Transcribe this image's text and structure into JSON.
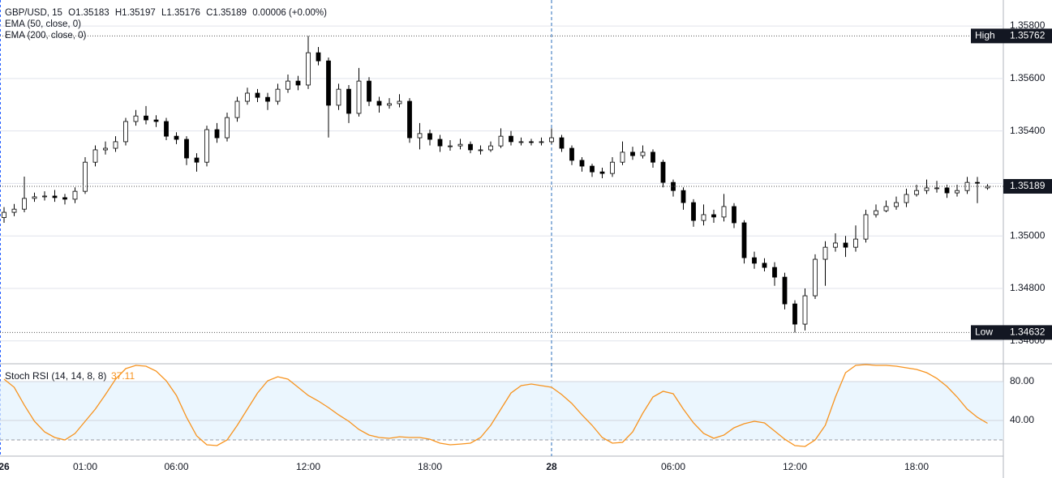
{
  "chart_data": [
    {
      "type": "candlestick",
      "header": {
        "title": "GBP/USD, 15",
        "open": "O1.35183",
        "high": "H1.35197",
        "low": "L1.35176",
        "close": "C1.35189",
        "change": "0.00006 (+0.00%)"
      },
      "indicators": [
        "EMA (50, close, 0)",
        "EMA (200, close, 0)"
      ],
      "xlim": [
        -0.4,
        98.56
      ],
      "xticks": [
        {
          "value": 0,
          "label": "26"
        },
        {
          "value": 8,
          "label": "01:00"
        },
        {
          "value": 17,
          "label": "06:00"
        },
        {
          "value": 30,
          "label": "12:00"
        },
        {
          "value": 42,
          "label": "18:00"
        },
        {
          "value": 54,
          "label": "28"
        },
        {
          "value": 66,
          "label": "06:00"
        },
        {
          "value": 78,
          "label": "12:00"
        },
        {
          "value": 90,
          "label": "18:00"
        }
      ],
      "crosshair_x": 54,
      "ylim": [
        1.34516,
        1.35899
      ],
      "yticks": [
        {
          "value": 1.358,
          "label": "1.35800"
        },
        {
          "value": 1.356,
          "label": "1.35600"
        },
        {
          "value": 1.354,
          "label": "1.35400"
        },
        {
          "value": 1.352,
          "label": "1.35200"
        },
        {
          "value": 1.35,
          "label": "1.35000"
        },
        {
          "value": 1.348,
          "label": "1.34800"
        },
        {
          "value": 1.346,
          "label": "1.34600"
        }
      ],
      "grid": true,
      "up_color": "#ffffff",
      "down_color": "#000000",
      "border_color": "#000000",
      "markers": [
        {
          "label": "High",
          "value": 1.35762
        },
        {
          "label": "Low",
          "value": 1.34632
        }
      ],
      "last_price": 1.35189,
      "ohlc": [
        [
          1.3507,
          1.3511,
          1.3505,
          1.3509
        ],
        [
          1.3509,
          1.35122,
          1.35075,
          1.35102
        ],
        [
          1.35102,
          1.35226,
          1.3509,
          1.35143
        ],
        [
          1.35143,
          1.35165,
          1.3513,
          1.35149
        ],
        [
          1.35149,
          1.3517,
          1.35135,
          1.35152
        ],
        [
          1.35152,
          1.35175,
          1.3513,
          1.35146
        ],
        [
          1.35146,
          1.3516,
          1.3512,
          1.3514
        ],
        [
          1.3514,
          1.35185,
          1.35125,
          1.3517
        ],
        [
          1.3517,
          1.353,
          1.3516,
          1.35281
        ],
        [
          1.35281,
          1.35345,
          1.35265,
          1.35328
        ],
        [
          1.35328,
          1.3536,
          1.3531,
          1.35334
        ],
        [
          1.35334,
          1.3538,
          1.3532,
          1.35359
        ],
        [
          1.35359,
          1.3545,
          1.35345,
          1.35436
        ],
        [
          1.35436,
          1.3548,
          1.3542,
          1.35457
        ],
        [
          1.35457,
          1.35495,
          1.35425,
          1.35442
        ],
        [
          1.35442,
          1.3546,
          1.35415,
          1.35436
        ],
        [
          1.35436,
          1.3545,
          1.35365,
          1.3538
        ],
        [
          1.3538,
          1.35395,
          1.3535,
          1.35368
        ],
        [
          1.35368,
          1.3538,
          1.3527,
          1.35297
        ],
        [
          1.35297,
          1.35315,
          1.35245,
          1.35281
        ],
        [
          1.35281,
          1.3542,
          1.35265,
          1.35405
        ],
        [
          1.35405,
          1.3543,
          1.35355,
          1.35374
        ],
        [
          1.35374,
          1.3547,
          1.3536,
          1.35451
        ],
        [
          1.35451,
          1.3553,
          1.35435,
          1.35513
        ],
        [
          1.35513,
          1.35565,
          1.355,
          1.35544
        ],
        [
          1.35544,
          1.3556,
          1.3551,
          1.35528
        ],
        [
          1.35528,
          1.35545,
          1.3548,
          1.35513
        ],
        [
          1.35513,
          1.3558,
          1.355,
          1.35559
        ],
        [
          1.35559,
          1.35615,
          1.35545,
          1.3559
        ],
        [
          1.3559,
          1.3561,
          1.35555,
          1.35575
        ],
        [
          1.35575,
          1.35762,
          1.3556,
          1.35698
        ],
        [
          1.35698,
          1.3572,
          1.3565,
          1.35667
        ],
        [
          1.35667,
          1.3568,
          1.35375,
          1.35498
        ],
        [
          1.35498,
          1.3558,
          1.3548,
          1.35559
        ],
        [
          1.35559,
          1.35575,
          1.3543,
          1.35467
        ],
        [
          1.35467,
          1.3564,
          1.35455,
          1.3559
        ],
        [
          1.3559,
          1.35605,
          1.35495,
          1.35513
        ],
        [
          1.35513,
          1.3553,
          1.3547,
          1.35498
        ],
        [
          1.35498,
          1.35525,
          1.35485,
          1.35504
        ],
        [
          1.35504,
          1.3554,
          1.3549,
          1.35513
        ],
        [
          1.35513,
          1.35525,
          1.35355,
          1.35374
        ],
        [
          1.35374,
          1.3543,
          1.3533,
          1.3539
        ],
        [
          1.3539,
          1.35405,
          1.35345,
          1.35368
        ],
        [
          1.35368,
          1.35385,
          1.3532,
          1.35343
        ],
        [
          1.35343,
          1.35365,
          1.35325,
          1.35343
        ],
        [
          1.35343,
          1.3537,
          1.3533,
          1.35349
        ],
        [
          1.35349,
          1.3536,
          1.35315,
          1.35328
        ],
        [
          1.35328,
          1.35345,
          1.3531,
          1.35328
        ],
        [
          1.35328,
          1.3536,
          1.3532,
          1.35343
        ],
        [
          1.35343,
          1.3541,
          1.35335,
          1.3538
        ],
        [
          1.3538,
          1.354,
          1.35345,
          1.35359
        ],
        [
          1.35359,
          1.35375,
          1.35345,
          1.35359
        ],
        [
          1.35359,
          1.3537,
          1.35345,
          1.35356
        ],
        [
          1.35356,
          1.35375,
          1.35345,
          1.35359
        ],
        [
          1.35359,
          1.3541,
          1.3535,
          1.35374
        ],
        [
          1.35374,
          1.35385,
          1.3532,
          1.35334
        ],
        [
          1.35334,
          1.35345,
          1.3527,
          1.35288
        ],
        [
          1.35288,
          1.353,
          1.35245,
          1.35266
        ],
        [
          1.35266,
          1.35275,
          1.35225,
          1.35244
        ],
        [
          1.35244,
          1.3526,
          1.3522,
          1.35238
        ],
        [
          1.35238,
          1.353,
          1.35225,
          1.35281
        ],
        [
          1.35281,
          1.3536,
          1.3527,
          1.35319
        ],
        [
          1.35319,
          1.3534,
          1.3529,
          1.35306
        ],
        [
          1.35306,
          1.35345,
          1.35295,
          1.35319
        ],
        [
          1.35319,
          1.3533,
          1.3526,
          1.35281
        ],
        [
          1.35281,
          1.3529,
          1.35185,
          1.35204
        ],
        [
          1.35204,
          1.35215,
          1.3515,
          1.35173
        ],
        [
          1.35173,
          1.35185,
          1.351,
          1.35127
        ],
        [
          1.35127,
          1.3514,
          1.35035,
          1.35059
        ],
        [
          1.35059,
          1.3512,
          1.3504,
          1.35081
        ],
        [
          1.35081,
          1.351,
          1.3505,
          1.35072
        ],
        [
          1.35072,
          1.3516,
          1.35055,
          1.35112
        ],
        [
          1.35112,
          1.35125,
          1.3503,
          1.3505
        ],
        [
          1.3505,
          1.3506,
          1.34895,
          1.34917
        ],
        [
          1.34917,
          1.3494,
          1.34875,
          1.34896
        ],
        [
          1.34896,
          1.34915,
          1.34865,
          1.3488
        ],
        [
          1.3488,
          1.349,
          1.3481,
          1.34843
        ],
        [
          1.34843,
          1.3486,
          1.3472,
          1.34741
        ],
        [
          1.34741,
          1.34755,
          1.34632,
          1.34664
        ],
        [
          1.34664,
          1.348,
          1.3464,
          1.34772
        ],
        [
          1.34772,
          1.3493,
          1.3476,
          1.34911
        ],
        [
          1.34911,
          1.3498,
          1.3481,
          1.34957
        ],
        [
          1.34957,
          1.3501,
          1.3494,
          1.34973
        ],
        [
          1.34973,
          1.35,
          1.3492,
          1.34957
        ],
        [
          1.34957,
          1.3504,
          1.3494,
          1.34988
        ],
        [
          1.34988,
          1.351,
          1.34975,
          1.35081
        ],
        [
          1.35081,
          1.3512,
          1.3507,
          1.35096
        ],
        [
          1.35096,
          1.35135,
          1.3509,
          1.35112
        ],
        [
          1.35112,
          1.3515,
          1.351,
          1.35127
        ],
        [
          1.35127,
          1.3518,
          1.3511,
          1.35158
        ],
        [
          1.35158,
          1.35195,
          1.3515,
          1.35173
        ],
        [
          1.35173,
          1.35215,
          1.3516,
          1.35183
        ],
        [
          1.35183,
          1.3521,
          1.35165,
          1.35183
        ],
        [
          1.35183,
          1.35195,
          1.35145,
          1.35164
        ],
        [
          1.35164,
          1.35195,
          1.3515,
          1.35173
        ],
        [
          1.35173,
          1.35225,
          1.3516,
          1.35204
        ],
        [
          1.35204,
          1.35225,
          1.35125,
          1.35201
        ],
        [
          1.35183,
          1.35197,
          1.35176,
          1.35189
        ]
      ]
    },
    {
      "type": "line",
      "name": "Stoch RSI (14, 14, 8, 8)",
      "color": "#f7931e",
      "ylim": [
        4.2,
        97.5
      ],
      "yticks": [
        {
          "value": 80,
          "label": "80.00"
        },
        {
          "value": 40,
          "label": "40.00"
        }
      ],
      "band": [
        20,
        80
      ],
      "band_color": "#e3f2fd",
      "values": [
        82.5,
        74.2,
        55.8,
        39.2,
        28.3,
        22.5,
        20.0,
        26.7,
        39.2,
        51.7,
        66.7,
        82.5,
        93.3,
        96.7,
        95.8,
        90.8,
        80.8,
        65.8,
        43.3,
        24.2,
        15.0,
        14.2,
        20.0,
        35.0,
        51.7,
        68.3,
        80.8,
        85.0,
        82.5,
        74.2,
        65.8,
        60.0,
        53.3,
        45.8,
        39.2,
        30.8,
        25.0,
        22.5,
        21.7,
        23.3,
        22.5,
        22.5,
        20.8,
        16.7,
        15.0,
        15.8,
        16.7,
        22.5,
        35.0,
        51.7,
        68.3,
        75.8,
        77.5,
        75.8,
        74.2,
        66.7,
        57.5,
        45.8,
        35.0,
        22.5,
        16.7,
        17.5,
        28.3,
        47.5,
        64.2,
        70.0,
        67.5,
        51.7,
        37.5,
        26.7,
        21.7,
        25.0,
        32.5,
        36.7,
        39.2,
        37.5,
        29.2,
        20.8,
        14.2,
        13.3,
        20.0,
        35.0,
        64.2,
        89.2,
        96.7,
        97.5,
        96.7,
        96.7,
        95.8,
        94.2,
        92.5,
        89.2,
        83.3,
        75.0,
        64.2,
        51.7,
        43.3,
        37.11
      ]
    }
  ]
}
